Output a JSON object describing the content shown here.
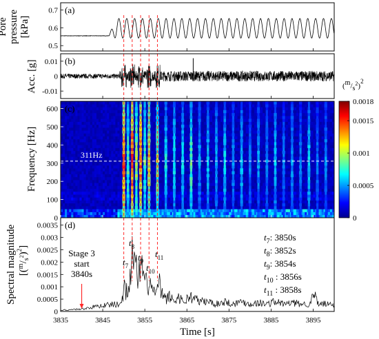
{
  "chart_data": [
    {
      "type": "line",
      "panel_label": "(a)",
      "ylabel": [
        "Pore",
        "pressure",
        "[kPa]"
      ],
      "yticks": [
        "0.7",
        "0.6",
        "0.5"
      ],
      "ylim": [
        0.47,
        0.74
      ],
      "xlim": [
        3835,
        3900
      ],
      "series": [
        {
          "baseline": 0.555,
          "onset_time": 3846.5,
          "oscillation_center": 0.597,
          "oscillation_amplitude": 0.055,
          "oscillation_period_s": 1.87
        }
      ]
    },
    {
      "type": "line",
      "panel_label": "(b)",
      "ylabel": "Acc. [g]",
      "yticks": [
        "0.01",
        "0",
        "-0.01"
      ],
      "ylim": [
        -0.015,
        0.015
      ],
      "xlim": [
        3835,
        3900
      ],
      "series": [
        {
          "background_amplitude": 0.0016,
          "active_amplitude": 0.0035,
          "burst_amplitude": 0.008,
          "active_from": 3849,
          "spike_time": 3866.5,
          "spike_value": 0.012
        }
      ]
    },
    {
      "type": "heatmap",
      "panel_label": "(c)",
      "ylabel": "Frequency [Hz]",
      "yticks": [
        "600",
        "500",
        "400",
        "300",
        "200",
        "100",
        "0"
      ],
      "ylim": [
        0,
        640
      ],
      "xlim": [
        3835,
        3900
      ],
      "reference_line": {
        "value": 311,
        "label": "311Hz"
      },
      "colorbar": {
        "unit_prefix": "(",
        "unit_numerator": "m",
        "unit_denominator": "s",
        "unit_exponent": "2",
        "unit_close": ")",
        "unit_power": "2",
        "range": [
          0,
          0.0018
        ],
        "ticks": [
          "0.0018",
          "0.0015",
          "0.001",
          "0.0005",
          "0"
        ]
      },
      "columns": [
        {
          "t": 3850,
          "level": 0.95
        },
        {
          "t": 3851,
          "level": 0.55
        },
        {
          "t": 3852,
          "level": 1.0
        },
        {
          "t": 3853,
          "level": 0.65
        },
        {
          "t": 3854,
          "level": 0.9
        },
        {
          "t": 3855,
          "level": 0.55
        },
        {
          "t": 3856,
          "level": 0.75
        },
        {
          "t": 3858,
          "level": 0.65
        },
        {
          "t": 3860,
          "level": 0.45
        },
        {
          "t": 3862,
          "level": 0.45
        },
        {
          "t": 3864,
          "level": 0.42
        },
        {
          "t": 3866,
          "level": 0.55
        },
        {
          "t": 3868,
          "level": 0.35
        },
        {
          "t": 3870,
          "level": 0.4
        },
        {
          "t": 3872,
          "level": 0.38
        },
        {
          "t": 3874,
          "level": 0.42
        },
        {
          "t": 3876,
          "level": 0.33
        },
        {
          "t": 3878,
          "level": 0.4
        },
        {
          "t": 3880,
          "level": 0.3
        },
        {
          "t": 3882,
          "level": 0.35
        },
        {
          "t": 3884,
          "level": 0.32
        },
        {
          "t": 3886,
          "level": 0.4
        },
        {
          "t": 3888,
          "level": 0.3
        },
        {
          "t": 3890,
          "level": 0.35
        },
        {
          "t": 3892,
          "level": 0.3
        },
        {
          "t": 3894,
          "level": 0.42
        },
        {
          "t": 3896,
          "level": 0.3
        },
        {
          "t": 3898,
          "level": 0.33
        }
      ]
    },
    {
      "type": "line",
      "panel_label": "(d)",
      "ylabel_line1": "Spectral magnitude",
      "ylabel_line2": {
        "open": "[(",
        "numerator": "m",
        "denominator": "s",
        "exponent": "2",
        "close": ")",
        "power": "2",
        "end": "]"
      },
      "yticks": [
        "0.0035",
        "0.003",
        "0.0025",
        "0.002",
        "0.0015",
        "0.001",
        "0.0005",
        "0"
      ],
      "ylim": [
        0,
        0.0038
      ],
      "xlabel": "Time [s]",
      "xticks": [
        3835,
        3845,
        3855,
        3865,
        3875,
        3885,
        3895
      ],
      "xlim": [
        3835,
        3900
      ],
      "series": [
        {
          "x": [
            3835,
            3840,
            3845,
            3849,
            3849.8,
            3850,
            3850.5,
            3851,
            3851.5,
            3852,
            3852.5,
            3853,
            3853.5,
            3854,
            3854.5,
            3855,
            3855.5,
            3856,
            3857,
            3858,
            3858.5,
            3859,
            3860,
            3861,
            3862,
            3863,
            3864,
            3865,
            3866,
            3868,
            3870,
            3872,
            3874,
            3876,
            3878,
            3880,
            3882,
            3884,
            3886,
            3888,
            3890,
            3892,
            3894,
            3895.5,
            3896,
            3898,
            3900
          ],
          "y": [
            5e-05,
            0.0001,
            0.00025,
            0.0003,
            0.0005,
            0.0013,
            0.0008,
            0.0011,
            0.0014,
            0.0022,
            0.0017,
            0.0018,
            0.0012,
            0.002,
            0.0014,
            0.0013,
            0.001,
            0.0012,
            0.0008,
            0.0008,
            0.0011,
            0.0007,
            0.0005,
            0.0006,
            0.0004,
            0.0006,
            0.0004,
            0.0005,
            0.0006,
            0.0004,
            0.0004,
            0.0003,
            0.0004,
            0.0003,
            0.0004,
            0.0003,
            0.00035,
            0.0003,
            0.0004,
            0.0003,
            0.00035,
            0.0003,
            0.0003,
            0.0007,
            0.0003,
            0.0003,
            0.00025
          ]
        }
      ],
      "stage_annotation": {
        "lines": [
          "Stage 3",
          "start",
          "3840s"
        ],
        "x": 3840
      },
      "peak_labels": [
        {
          "sym": "t",
          "sub": "7",
          "x": 3850,
          "y": 0.0013
        },
        {
          "sym": "t",
          "sub": "8",
          "x": 3852,
          "y": 0.0022
        },
        {
          "sym": "t",
          "sub": "9",
          "x": 3854,
          "y": 0.002
        },
        {
          "sym": "t",
          "sub": "10",
          "x": 3856,
          "y": 0.0012
        },
        {
          "sym": "t",
          "sub": "11",
          "x": 3858,
          "y": 0.0011
        }
      ],
      "time_table": [
        {
          "sym": "t",
          "sub": "7",
          "text": ": 3850s"
        },
        {
          "sym": "t",
          "sub": "8",
          "text": ": 3852s"
        },
        {
          "sym": "t",
          "sub": "9",
          "text": ": 3854s"
        },
        {
          "sym": "t",
          "sub": "10",
          "text": " : 3856s"
        },
        {
          "sym": "t",
          "sub": "11",
          "text": " : 3858s"
        }
      ]
    }
  ],
  "marker_times": [
    3850,
    3852,
    3854,
    3856,
    3858
  ],
  "colors": {
    "marker_line": "#ff2a2a",
    "trace": "#000000",
    "reference_line": "#ffffff",
    "colormap": [
      "#00008f",
      "#0000ff",
      "#0080ff",
      "#00ffff",
      "#80ff80",
      "#ffff00",
      "#ff8000",
      "#ff0000",
      "#800000"
    ]
  }
}
